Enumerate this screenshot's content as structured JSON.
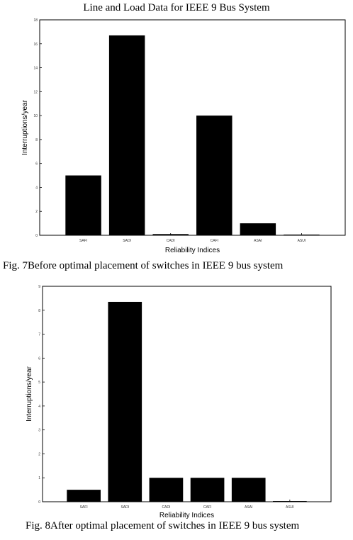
{
  "header": {
    "title": "Line and Load Data for IEEE 9 Bus System"
  },
  "captions": {
    "fig7": "Fig. 7Before optimal placement of switches in IEEE 9 bus system",
    "fig8": "Fig. 8After optimal placement of switches in IEEE 9 bus system"
  },
  "colors": {
    "bar": "#000000",
    "axis": "#000000",
    "background": "#ffffff"
  },
  "chart_data": [
    {
      "type": "bar",
      "title": "",
      "xlabel": "Reliability Indices",
      "ylabel": "Interruptions/year",
      "categories": [
        "SAFI",
        "SADI",
        "CADI",
        "CAFI",
        "ASAI",
        "ASUI"
      ],
      "values": [
        5,
        16.7,
        0.1,
        10,
        1,
        0.05
      ],
      "ylim": [
        0,
        18
      ],
      "yticks": [
        0,
        2,
        4,
        6,
        8,
        10,
        12,
        14,
        16,
        18
      ],
      "grid": false,
      "legend": "none"
    },
    {
      "type": "bar",
      "title": "",
      "xlabel": "Reliability Indices",
      "ylabel": "Interruptions/year",
      "categories": [
        "SAFI",
        "SADI",
        "CADI",
        "CAFI",
        "ASAI",
        "ASUI"
      ],
      "values": [
        0.5,
        8.35,
        1,
        1,
        1,
        0.03
      ],
      "ylim": [
        0,
        9
      ],
      "yticks": [
        0,
        1,
        2,
        3,
        4,
        5,
        6,
        7,
        8,
        9
      ],
      "grid": false,
      "legend": "none"
    }
  ]
}
